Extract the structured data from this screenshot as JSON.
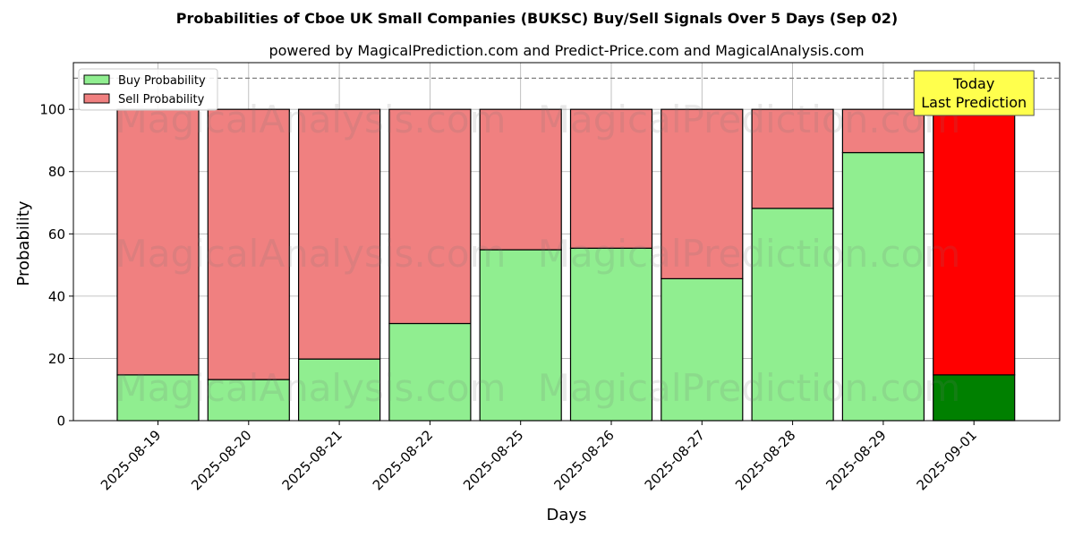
{
  "chart_data": {
    "type": "bar",
    "stacked": true,
    "title": "Probabilities of Cboe UK Small Companies (BUKSC) Buy/Sell Signals Over 5 Days (Sep 02)",
    "subtitle": "powered by MagicalPrediction.com and Predict-Price.com and MagicalAnalysis.com",
    "xlabel": "Days",
    "ylabel": "Probability",
    "ylim": [
      0,
      115
    ],
    "yticks": [
      0,
      20,
      40,
      60,
      80,
      100
    ],
    "grid": true,
    "legend_position": "top-left",
    "categories": [
      "2025-08-19",
      "2025-08-20",
      "2025-08-21",
      "2025-08-22",
      "2025-08-25",
      "2025-08-26",
      "2025-08-27",
      "2025-08-28",
      "2025-08-29",
      "2025-09-01"
    ],
    "series": [
      {
        "name": "Buy Probability",
        "color": "#90ee90",
        "values": [
          14.7,
          13.2,
          19.8,
          31.2,
          54.9,
          55.4,
          45.6,
          68.2,
          86.1,
          14.7
        ]
      },
      {
        "name": "Sell Probability",
        "color": "#f08080",
        "values": [
          85.3,
          86.8,
          80.2,
          68.8,
          45.1,
          44.6,
          54.4,
          31.8,
          13.9,
          85.3
        ]
      }
    ],
    "highlight": {
      "index": 9,
      "buy_color": "#008000",
      "sell_color": "#ff0000"
    },
    "reference_line": {
      "y": 110,
      "style": "dashed",
      "color": "#808080"
    },
    "annotation": {
      "lines": [
        "Today",
        "Last Prediction"
      ],
      "background": "#ffff4d"
    },
    "watermarks": [
      "MagicalAnalysis.com",
      "MagicalPrediction.com"
    ]
  }
}
